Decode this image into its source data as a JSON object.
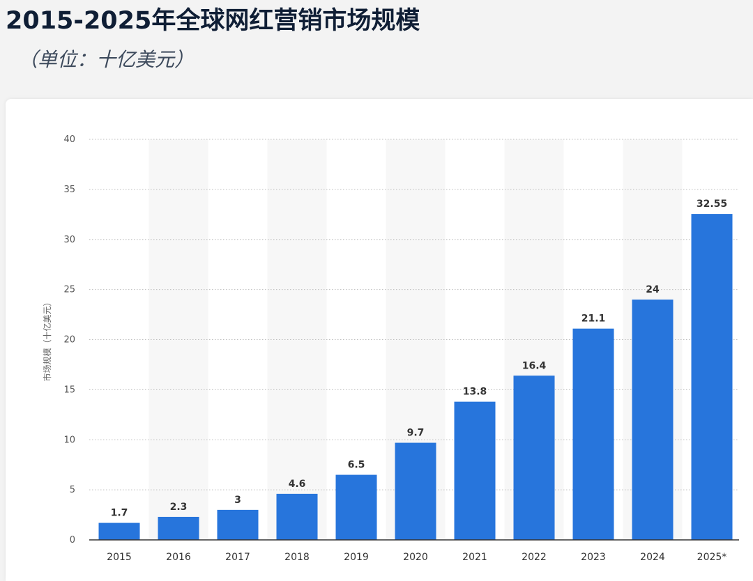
{
  "header": {
    "title": "2015-2025年全球网红营销市场规模",
    "subtitle": "（单位：十亿美元）"
  },
  "chart_data": {
    "type": "bar",
    "title": "2015-2025年全球网红营销市场规模",
    "subtitle": "（单位：十亿美元）",
    "ylabel": "市场规模（十亿美元）",
    "xlabel": "",
    "categories": [
      "2015",
      "2016",
      "2017",
      "2018",
      "2019",
      "2020",
      "2021",
      "2022",
      "2023",
      "2024",
      "2025*"
    ],
    "values": [
      1.7,
      2.3,
      3,
      4.6,
      6.5,
      9.7,
      13.8,
      16.4,
      21.1,
      24,
      32.55
    ],
    "value_labels": [
      "1.7",
      "2.3",
      "3",
      "4.6",
      "6.5",
      "9.7",
      "13.8",
      "16.4",
      "21.1",
      "24",
      "32.55"
    ],
    "ylim": [
      0,
      40
    ],
    "yticks": [
      "0",
      "5",
      "10",
      "15",
      "20",
      "25",
      "30",
      "35",
      "40"
    ],
    "grid": true,
    "bar_color": "#2775dc"
  }
}
